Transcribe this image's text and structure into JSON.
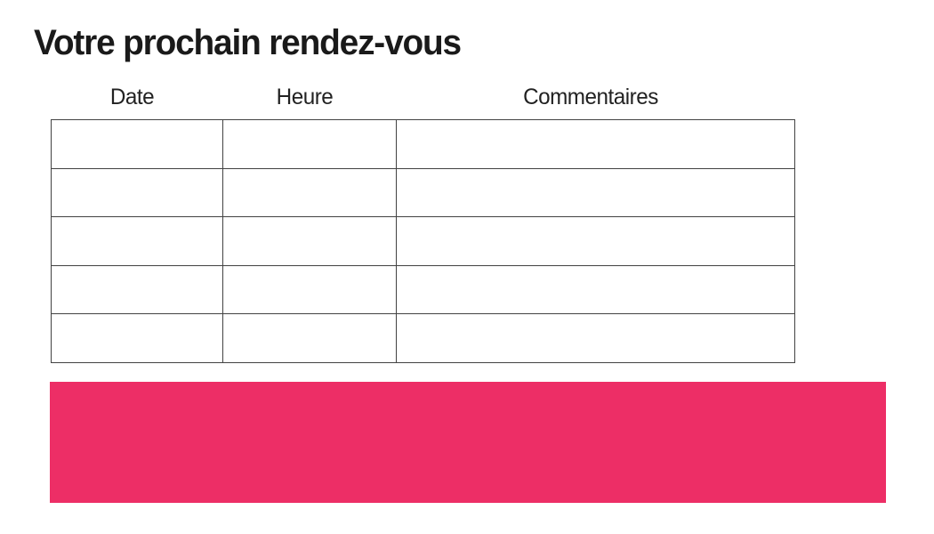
{
  "page": {
    "title": "Votre prochain rendez-vous"
  },
  "table": {
    "columns": [
      {
        "key": "date",
        "label": "Date"
      },
      {
        "key": "heure",
        "label": "Heure"
      },
      {
        "key": "commentaires",
        "label": "Commentaires"
      }
    ],
    "rows": [
      [
        "",
        "",
        ""
      ],
      [
        "",
        "",
        ""
      ],
      [
        "",
        "",
        ""
      ],
      [
        "",
        "",
        ""
      ],
      [
        "",
        "",
        ""
      ]
    ]
  },
  "banner": {
    "text": ""
  },
  "colors": {
    "accent_pink": "#ED2E66",
    "table_border": "#424242",
    "text": "#1a1a1a"
  }
}
